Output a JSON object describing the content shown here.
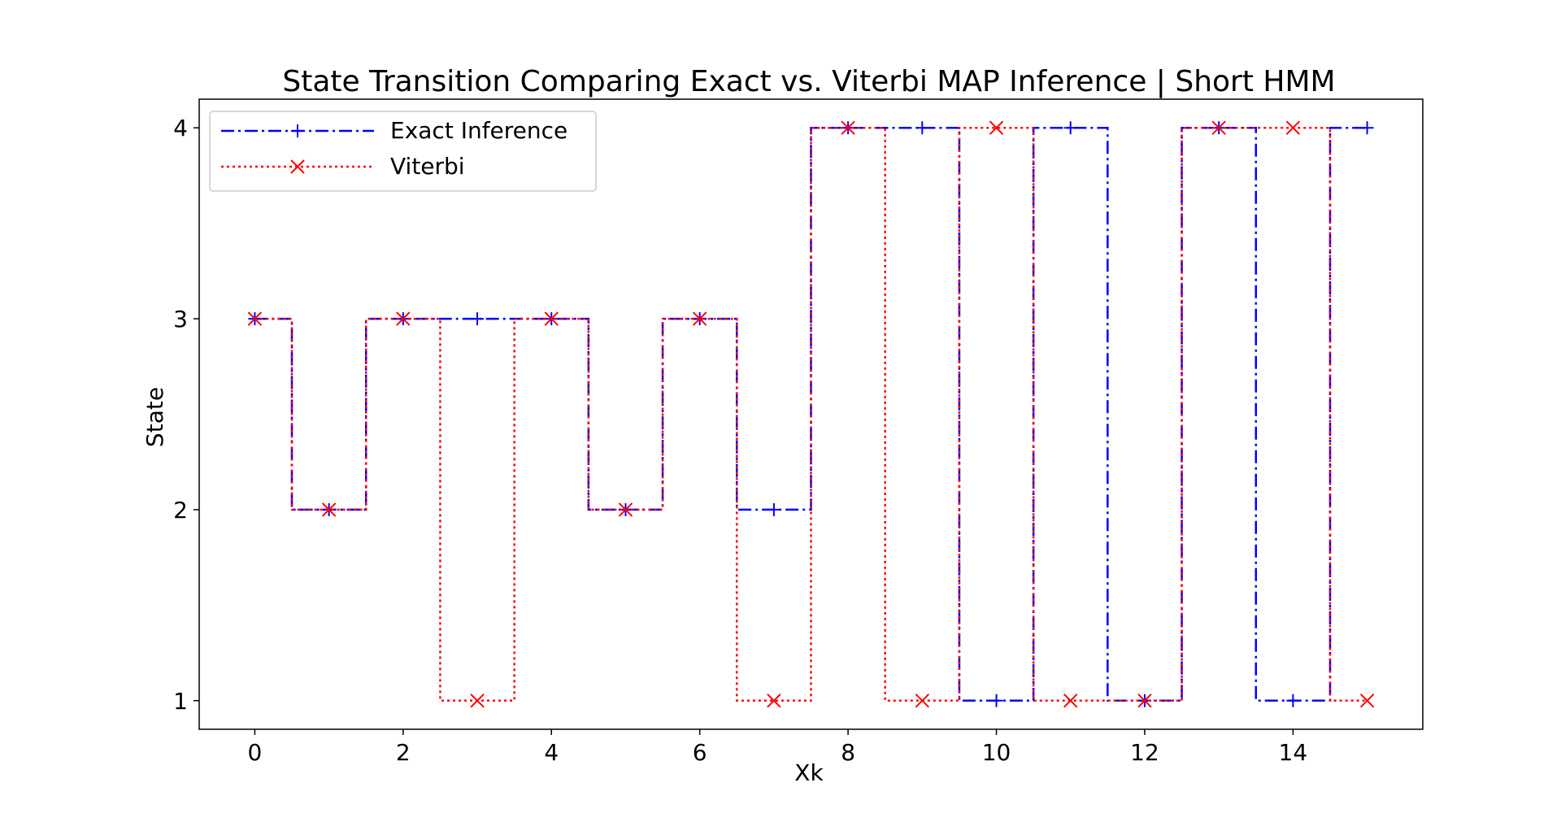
{
  "chart_data": {
    "type": "line",
    "title": "State Transition Comparing Exact vs. Viterbi MAP Inference | Short HMM",
    "xlabel": "Xk",
    "ylabel": "State",
    "xlim": [
      -0.75,
      15.75
    ],
    "ylim": [
      0.85,
      4.15
    ],
    "x_ticks": [
      0,
      2,
      4,
      6,
      8,
      10,
      12,
      14
    ],
    "y_ticks": [
      1,
      2,
      3,
      4
    ],
    "grid": false,
    "legend_position": "top-left",
    "x": [
      0,
      1,
      2,
      3,
      4,
      5,
      6,
      7,
      8,
      9,
      10,
      11,
      12,
      13,
      14,
      15
    ],
    "series": [
      {
        "name": "Exact Inference",
        "color": "#0000ff",
        "line_style": "dash-dot",
        "marker": "plus",
        "drawstyle": "steps-mid",
        "values": [
          3,
          2,
          3,
          3,
          3,
          2,
          3,
          2,
          4,
          4,
          1,
          4,
          1,
          4,
          1,
          4
        ]
      },
      {
        "name": "Viterbi",
        "color": "#ff0000",
        "line_style": "dotted",
        "marker": "x",
        "drawstyle": "steps-mid",
        "values": [
          3,
          2,
          3,
          1,
          3,
          2,
          3,
          1,
          4,
          1,
          4,
          1,
          1,
          4,
          4,
          1
        ]
      }
    ]
  }
}
